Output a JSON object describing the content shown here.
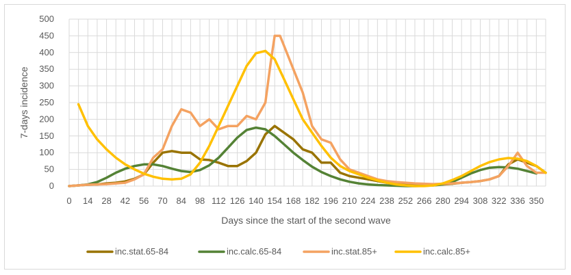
{
  "chart_data": {
    "type": "line",
    "title": "",
    "xlabel": "Days since the start of the second wave",
    "ylabel": "7-days incidence",
    "xlim": [
      0,
      357
    ],
    "ylim": [
      0,
      500
    ],
    "x_ticks": [
      0,
      14,
      28,
      42,
      56,
      70,
      84,
      98,
      112,
      126,
      140,
      154,
      168,
      182,
      196,
      210,
      224,
      238,
      252,
      266,
      280,
      294,
      308,
      322,
      336,
      350
    ],
    "y_ticks": [
      0,
      50,
      100,
      150,
      200,
      250,
      300,
      350,
      400,
      450,
      500
    ],
    "grid": "vertical and horizontal",
    "legend_position": "bottom",
    "series": [
      {
        "name": "inc.stat.65-84",
        "color": "#997300",
        "x": [
          0,
          7,
          14,
          21,
          28,
          35,
          42,
          49,
          56,
          63,
          70,
          77,
          84,
          91,
          98,
          105,
          112,
          119,
          126,
          133,
          140,
          147,
          154,
          161,
          168,
          175,
          182,
          189,
          196,
          203,
          210,
          217,
          224,
          231,
          238,
          245,
          252,
          259,
          266,
          273,
          280,
          287,
          294,
          301,
          308,
          315,
          322,
          329,
          336,
          343,
          350,
          357
        ],
        "y": [
          0,
          2,
          4,
          5,
          8,
          10,
          14,
          22,
          35,
          70,
          100,
          105,
          100,
          100,
          80,
          78,
          70,
          60,
          60,
          75,
          100,
          155,
          180,
          160,
          140,
          110,
          100,
          70,
          70,
          40,
          30,
          25,
          20,
          15,
          10,
          8,
          6,
          5,
          4,
          4,
          5,
          7,
          10,
          12,
          15,
          20,
          30,
          65,
          80,
          70,
          60,
          40
        ]
      },
      {
        "name": "inc.calc.65-84",
        "color": "#548235",
        "x": [
          0,
          7,
          14,
          21,
          28,
          35,
          42,
          49,
          56,
          63,
          70,
          77,
          84,
          91,
          98,
          105,
          112,
          119,
          126,
          133,
          140,
          147,
          154,
          161,
          168,
          175,
          182,
          189,
          196,
          203,
          210,
          217,
          224,
          231,
          238,
          245,
          252,
          259,
          266,
          273,
          280,
          287,
          294,
          301,
          308,
          315,
          322,
          329,
          336,
          343,
          350
        ],
        "y": [
          0,
          2,
          5,
          12,
          25,
          40,
          52,
          60,
          65,
          65,
          60,
          52,
          45,
          42,
          48,
          62,
          85,
          115,
          145,
          168,
          175,
          170,
          150,
          125,
          100,
          78,
          58,
          42,
          30,
          20,
          13,
          8,
          5,
          3,
          2,
          1,
          0,
          0,
          1,
          2,
          5,
          12,
          25,
          38,
          48,
          55,
          57,
          56,
          52,
          45,
          38
        ]
      },
      {
        "name": "inc.stat.85+",
        "color": "#f4a261",
        "x": [
          0,
          7,
          14,
          21,
          28,
          35,
          42,
          49,
          56,
          63,
          70,
          77,
          84,
          91,
          98,
          105,
          112,
          119,
          126,
          133,
          140,
          147,
          151,
          154,
          158,
          161,
          168,
          175,
          182,
          189,
          196,
          203,
          210,
          217,
          224,
          231,
          238,
          245,
          252,
          259,
          266,
          273,
          280,
          287,
          294,
          301,
          308,
          315,
          322,
          329,
          336,
          343,
          350,
          357
        ],
        "y": [
          0,
          2,
          4,
          5,
          6,
          8,
          10,
          20,
          35,
          85,
          110,
          180,
          230,
          220,
          180,
          200,
          170,
          180,
          180,
          210,
          200,
          250,
          370,
          450,
          450,
          420,
          350,
          280,
          180,
          140,
          130,
          80,
          50,
          40,
          30,
          20,
          15,
          12,
          10,
          8,
          7,
          6,
          7,
          8,
          10,
          12,
          15,
          20,
          30,
          60,
          100,
          60,
          40,
          40
        ]
      },
      {
        "name": "inc.calc.85+",
        "color": "#ffc000",
        "x": [
          7,
          14,
          21,
          28,
          35,
          42,
          49,
          56,
          63,
          70,
          77,
          84,
          91,
          98,
          105,
          112,
          119,
          126,
          133,
          140,
          147,
          154,
          161,
          168,
          175,
          182,
          189,
          196,
          203,
          210,
          217,
          224,
          231,
          238,
          245,
          252,
          259,
          266,
          273,
          280,
          287,
          294,
          301,
          308,
          315,
          322,
          329,
          336,
          343,
          350,
          357
        ],
        "y": [
          245,
          180,
          140,
          110,
          85,
          65,
          50,
          37,
          28,
          22,
          20,
          22,
          35,
          70,
          120,
          180,
          240,
          300,
          360,
          398,
          405,
          380,
          320,
          260,
          200,
          160,
          120,
          85,
          60,
          45,
          35,
          25,
          17,
          10,
          5,
          2,
          0,
          0,
          2,
          8,
          18,
          30,
          45,
          60,
          72,
          80,
          84,
          82,
          75,
          60,
          40
        ]
      }
    ]
  }
}
